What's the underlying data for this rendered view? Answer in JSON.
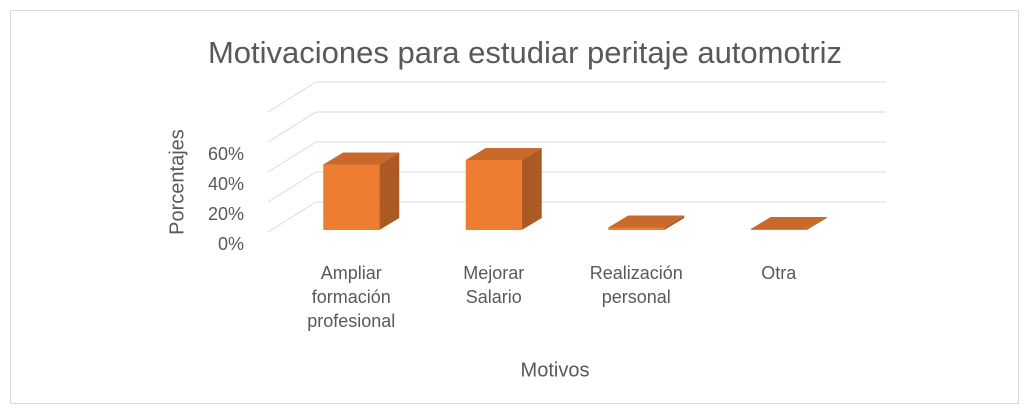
{
  "chart_data": {
    "type": "bar3d",
    "title": "Motivaciones para estudiar peritaje automotriz",
    "xlabel": "Motivos",
    "ylabel": "Porcentajes",
    "categories": [
      "Ampliar formación profesional",
      "Mejorar Salario",
      "Realización personal",
      "Otra"
    ],
    "values": [
      45,
      48,
      3,
      2
    ],
    "color": "#ed7d31",
    "ylim": [
      0,
      80
    ],
    "yticks": [
      {
        "value": 0,
        "label": "0%"
      },
      {
        "value": 20,
        "label": "20%"
      },
      {
        "value": 40,
        "label": "40%"
      },
      {
        "value": 60,
        "label": "60%"
      }
    ],
    "grid": true
  }
}
